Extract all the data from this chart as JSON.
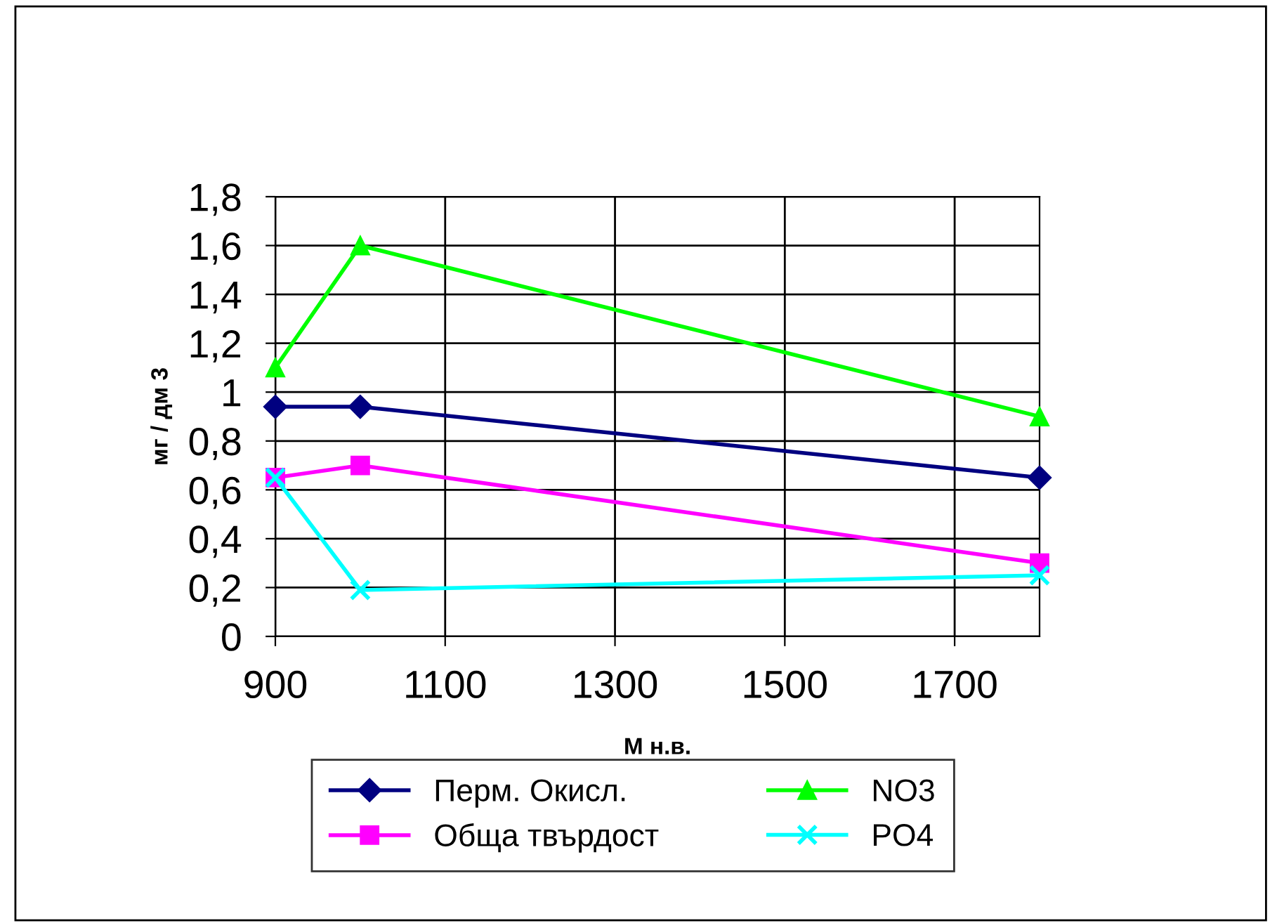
{
  "chart_data": {
    "type": "line",
    "xlabel": "М н.в.",
    "ylabel": "мг / дм 3",
    "x": [
      900,
      1000,
      1800
    ],
    "series": [
      {
        "name": "Перм. Окисл.",
        "color": "#000080",
        "marker": "diamond",
        "values": [
          0.94,
          0.94,
          0.65
        ]
      },
      {
        "name": "Обща твърдост",
        "color": "#ff00ff",
        "marker": "square",
        "values": [
          0.65,
          0.7,
          0.3
        ]
      },
      {
        "name": "NO3",
        "color": "#00ff00",
        "marker": "triangle",
        "values": [
          1.1,
          1.6,
          0.9
        ]
      },
      {
        "name": "PO4",
        "color": "#00ffff",
        "marker": "cross",
        "values": [
          0.65,
          0.19,
          0.25
        ]
      }
    ],
    "xlim": [
      900,
      1800
    ],
    "xticks": [
      900,
      1100,
      1300,
      1500,
      1700
    ],
    "ylim": [
      0,
      1.8
    ],
    "yticks": [
      0,
      {
        "value": 0.2,
        "label": "0,2"
      },
      {
        "value": 0.4,
        "label": "0,4"
      },
      {
        "value": 0.6,
        "label": "0,6"
      },
      {
        "value": 0.8,
        "label": "0,8"
      },
      1,
      {
        "value": 1.2,
        "label": "1,2"
      },
      {
        "value": 1.4,
        "label": "1,4"
      },
      {
        "value": 1.6,
        "label": "1,6"
      },
      {
        "value": 1.8,
        "label": "1,8"
      }
    ],
    "grid": true,
    "legend": "bottom",
    "line_style": "solid"
  }
}
